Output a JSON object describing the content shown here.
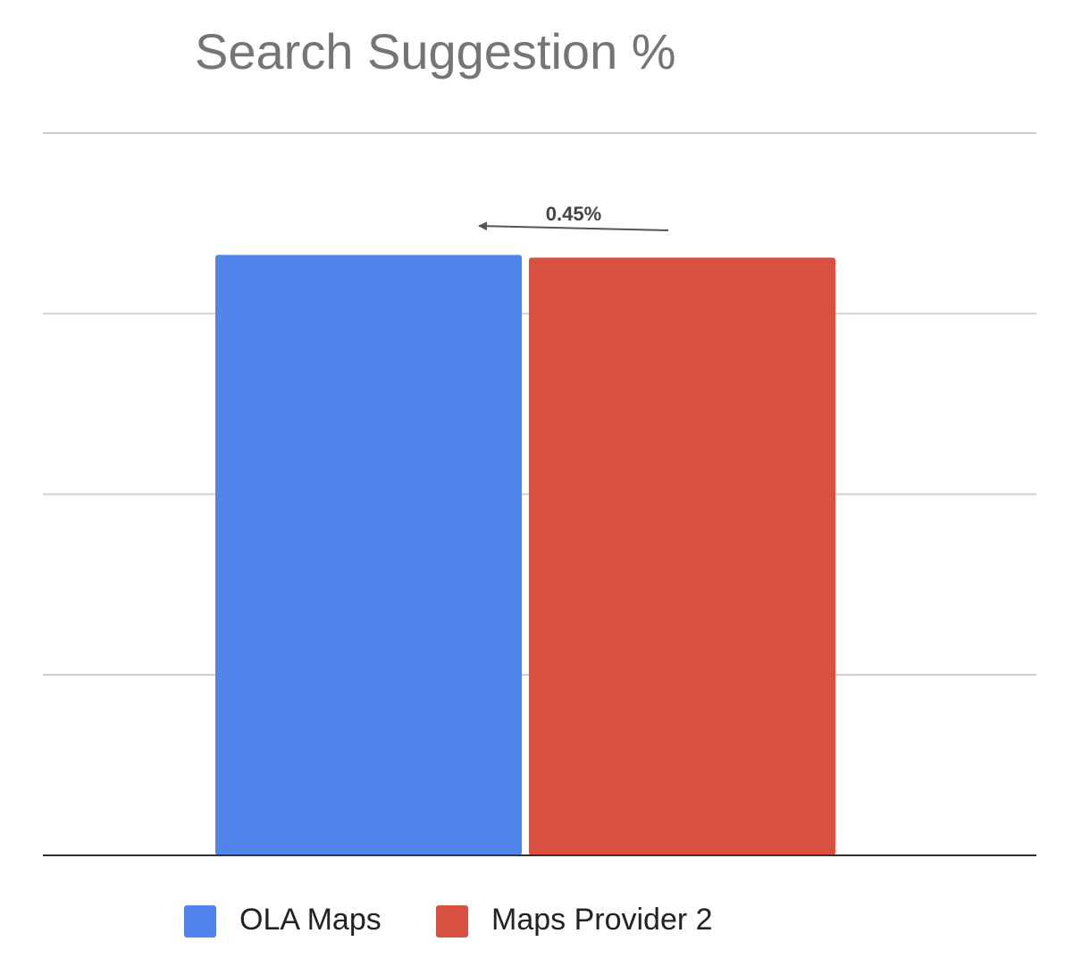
{
  "chart_data": {
    "type": "bar",
    "title": "Search Suggestion %",
    "categories": [
      null
    ],
    "series": [
      {
        "name": "OLA Maps",
        "color": "#5185ec",
        "values": [
          3.325
        ]
      },
      {
        "name": "Maps Provider 2",
        "color": "#d85040",
        "values": [
          3.31
        ]
      }
    ],
    "annotations": [
      {
        "text": "0.45%"
      }
    ],
    "ylim": [
      0,
      4
    ],
    "yticks": [
      0,
      1,
      2,
      3,
      4
    ],
    "show_tick_labels": false,
    "grid": true,
    "legend": "bottom"
  }
}
